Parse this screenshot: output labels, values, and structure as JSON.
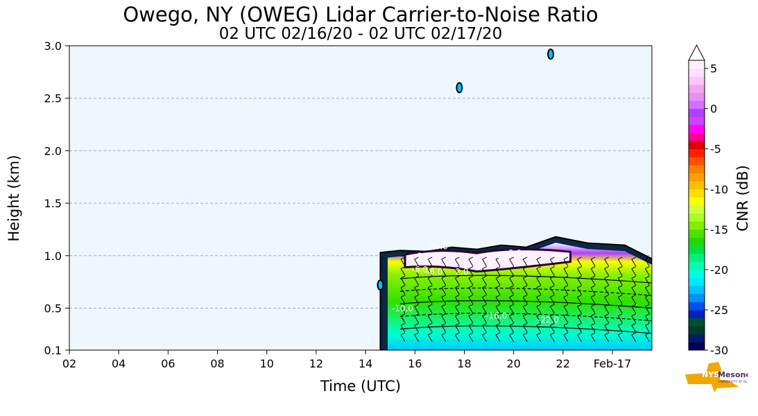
{
  "title": "Owego, NY (OWEG) Lidar Carrier-to-Noise Ratio",
  "subtitle": "02 UTC 02/16/20 - 02 UTC 02/17/20",
  "logo": {
    "text": "NYS Mesonet",
    "subtext": "UNIVERSITY AT ALBANY"
  },
  "chart_data": {
    "type": "heatmap",
    "xlabel": "Time (UTC)",
    "ylabel": "Height (km)",
    "xlim": [
      2,
      25.6
    ],
    "ylim": [
      0.1,
      3.0
    ],
    "x_ticks": [
      2,
      4,
      6,
      8,
      10,
      12,
      14,
      16,
      18,
      20,
      22,
      24
    ],
    "x_tick_labels": [
      "02",
      "04",
      "06",
      "08",
      "10",
      "12",
      "14",
      "16",
      "18",
      "20",
      "22",
      "Feb-17"
    ],
    "y_ticks": [
      0.1,
      0.5,
      1.0,
      1.5,
      2.0,
      2.5,
      3.0
    ],
    "y_tick_labels": [
      "0.1",
      "0.5",
      "1.0",
      "1.5",
      "2.0",
      "2.5",
      "3.0"
    ],
    "grid": "horizontal dashed",
    "colorbar": {
      "label": "CNR (dB)",
      "range": [
        -30,
        6
      ],
      "ticks": [
        5,
        0,
        -5,
        -10,
        -15,
        -20,
        -25,
        -30
      ],
      "tick_labels": [
        "5",
        "0",
        "-5",
        "-10",
        "-15",
        "-20",
        "-25",
        "-30"
      ],
      "extend": "max",
      "colors": [
        "#000050",
        "#001a6e",
        "#003b2e",
        "#005030",
        "#0020c0",
        "#0050f0",
        "#0090ff",
        "#00c0ff",
        "#00e8ff",
        "#00ffe0",
        "#00ffb0",
        "#00f080",
        "#00e040",
        "#20d800",
        "#50e000",
        "#80f000",
        "#a8ff20",
        "#d0ff40",
        "#f8ff00",
        "#ffe000",
        "#ffc000",
        "#ffa000",
        "#ff8000",
        "#ff5000",
        "#ff2000",
        "#e00000",
        "#ff0090",
        "#ff00ff",
        "#d040ff",
        "#b040ff",
        "#d070ff",
        "#e890f8",
        "#f0a8f0",
        "#f8c8f8",
        "#ffe0ff",
        "#fff0ff"
      ]
    },
    "background_value": "no data (below -30 dB)",
    "cloud_layer": {
      "time_start_utc": 14.6,
      "time_end_utc": 25.6,
      "base_km": 0.1,
      "top_km": [
        [
          14.6,
          1.03
        ],
        [
          15.4,
          1.05
        ],
        [
          16.5,
          1.04
        ],
        [
          17.5,
          1.08
        ],
        [
          18.5,
          1.06
        ],
        [
          19.5,
          1.1
        ],
        [
          20.5,
          1.08
        ],
        [
          21.7,
          1.18
        ],
        [
          23.0,
          1.12
        ],
        [
          24.5,
          1.1
        ],
        [
          25.6,
          0.97
        ]
      ],
      "bright_layer_km": [
        0.85,
        1.05
      ],
      "bright_layer_cnr_db": 5
    },
    "contour_labels": [
      {
        "text": "-26.0",
        "time_utc": 16.9,
        "height_km": 1.06
      },
      {
        "text": "-2.0",
        "time_utc": 16.3,
        "height_km": 0.97
      },
      {
        "text": "-2.0",
        "time_utc": 19.5,
        "height_km": 0.98
      },
      {
        "text": "-2.0",
        "time_utc": 20.0,
        "height_km": 1.0
      },
      {
        "text": "-6.0",
        "time_utc": 16.2,
        "height_km": 0.84
      },
      {
        "text": "-6.0",
        "time_utc": 16.8,
        "height_km": 0.82
      },
      {
        "text": "2.0",
        "time_utc": 17.9,
        "height_km": 0.82
      },
      {
        "text": "-10.0",
        "time_utc": 15.5,
        "height_km": 0.47
      },
      {
        "text": "-16.0",
        "time_utc": 19.3,
        "height_km": 0.4
      },
      {
        "text": "-22.0",
        "time_utc": 21.4,
        "height_km": 0.36
      }
    ],
    "isolated_echoes": [
      {
        "time_utc": 14.6,
        "height_km": 0.72
      },
      {
        "time_utc": 17.8,
        "height_km": 2.6
      },
      {
        "time_utc": 21.5,
        "height_km": 2.92
      }
    ]
  }
}
